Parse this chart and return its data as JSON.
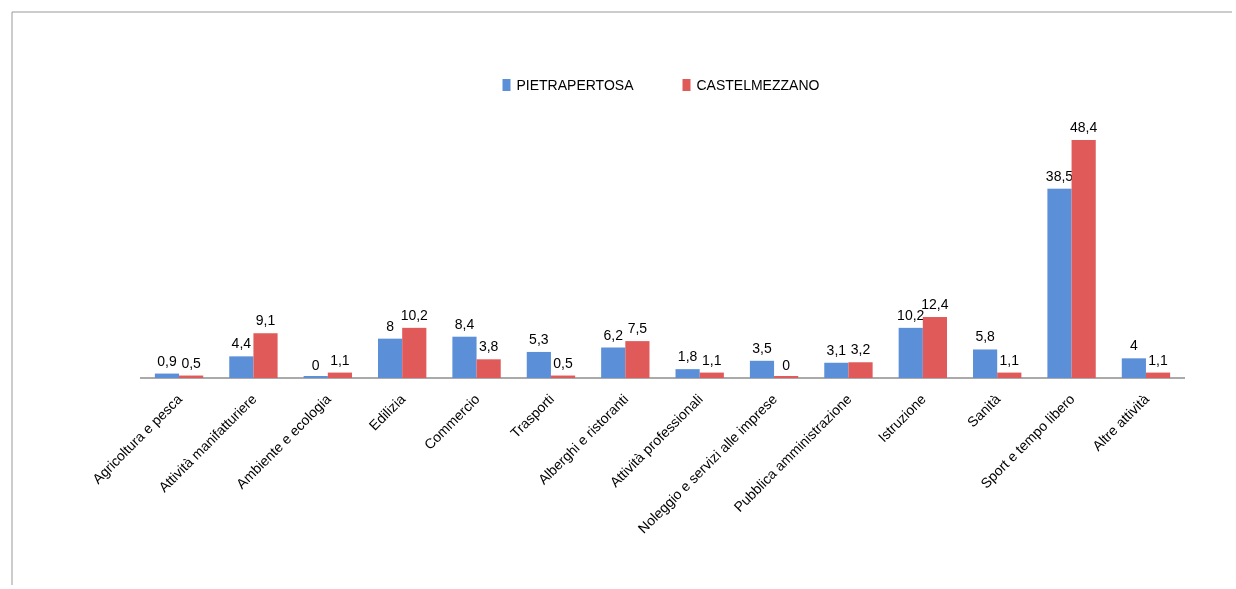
{
  "chart_data": {
    "type": "bar",
    "categories": [
      "Agricoltura e pesca",
      "Attività manifatturiere",
      "Ambiente e ecologia",
      "Edilizia",
      "Commercio",
      "Trasporti",
      "Alberghi e ristoranti",
      "Attività professionali",
      "Noleggio e servizi alle imprese",
      "Pubblica amministrazione",
      "Istruzione",
      "Sanità",
      "Sport e tempo libero",
      "Altre attività"
    ],
    "series": [
      {
        "name": "PIETRAPERTOSA",
        "color": "#5b8fd8",
        "values": [
          0.9,
          4.4,
          0,
          8,
          8.4,
          5.3,
          6.2,
          1.8,
          3.5,
          3.1,
          10.2,
          5.8,
          38.5,
          4
        ],
        "value_labels": [
          "0,9",
          "4,4",
          "0",
          "8",
          "8,4",
          "5,3",
          "6,2",
          "1,8",
          "3,5",
          "3,1",
          "10,2",
          "5,8",
          "38,5",
          "4"
        ]
      },
      {
        "name": "CASTELMEZZANO",
        "color": "#e05a5a",
        "values": [
          0.5,
          9.1,
          1.1,
          10.2,
          3.8,
          0.5,
          7.5,
          1.1,
          0,
          3.2,
          12.4,
          1.1,
          48.4,
          1.1
        ],
        "value_labels": [
          "0,5",
          "9,1",
          "1,1",
          "10,2",
          "3,8",
          "0,5",
          "7,5",
          "1,1",
          "0",
          "3,2",
          "12,4",
          "1,1",
          "48,4",
          "1,1"
        ]
      }
    ],
    "legend": "top"
  }
}
